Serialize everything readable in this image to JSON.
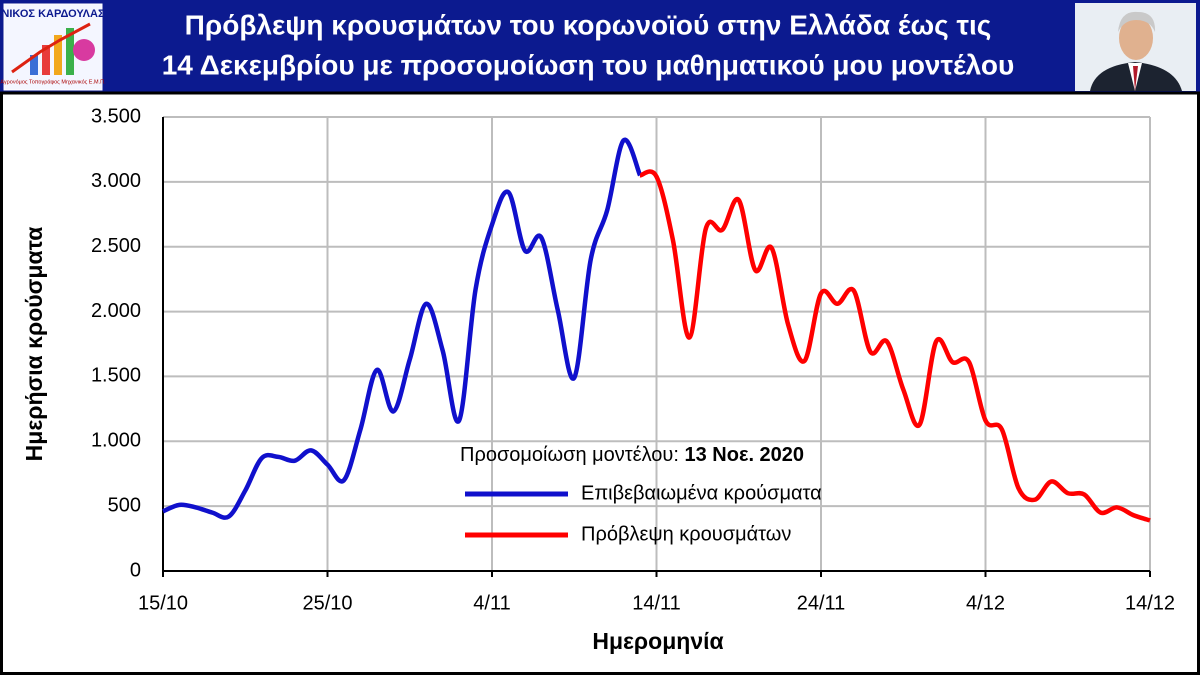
{
  "header": {
    "title_lines": [
      "Πρόβλεψη κρουσμάτων του κορωνοϊού στην Ελλάδα έως τις",
      "14 Δεκεμβρίου με προσομοίωση του μαθηματικού μου μοντέλου"
    ],
    "logo_name": "ΝΙΚΟΣ ΚΑΡΔΟΥΛΑΣ",
    "logo_caption": "Αγρονόμος Τοπογράφος Μηχανικός Ε.Μ.Π."
  },
  "chart_data": {
    "type": "line",
    "annotation": {
      "text": "Προσομοίωση μοντέλου:",
      "date": "13 Νοε. 2020"
    },
    "x_label": "Ημερομηνία",
    "y_label": "Ημερήσια κρούσματα",
    "x": [
      0,
      1,
      2,
      3,
      4,
      5,
      6,
      7,
      8,
      9,
      10,
      11,
      12,
      13,
      14,
      15,
      16,
      17,
      18,
      19,
      20,
      21,
      22,
      23,
      24,
      25,
      26,
      27,
      28,
      29,
      30,
      31,
      32,
      33,
      34,
      35,
      36,
      37,
      38,
      39,
      40,
      41,
      42,
      43,
      44,
      45,
      46,
      47,
      48,
      49,
      50,
      51,
      52,
      53,
      54,
      55,
      56,
      57,
      58,
      59,
      60
    ],
    "xlim": [
      0,
      60
    ],
    "xticks": [
      {
        "value": 0,
        "label": "15/10"
      },
      {
        "value": 10,
        "label": "25/10"
      },
      {
        "value": 20,
        "label": "4/11"
      },
      {
        "value": 30,
        "label": "14/11"
      },
      {
        "value": 40,
        "label": "24/11"
      },
      {
        "value": 50,
        "label": "4/12"
      },
      {
        "value": 60,
        "label": "14/12"
      }
    ],
    "ylim": [
      0,
      3500
    ],
    "yticks": [
      0,
      500,
      {
        "value": 1000,
        "label": "1.000"
      },
      {
        "value": 1500,
        "label": "1.500"
      },
      {
        "value": 2000,
        "label": "2.000"
      },
      {
        "value": 2500,
        "label": "2.500"
      },
      {
        "value": 3000,
        "label": "3.000"
      },
      {
        "value": 3500,
        "label": "3.500"
      }
    ],
    "grid": true,
    "series": [
      {
        "name": "Επιβεβαιωμένα κρούσματα",
        "color": "#1010cc",
        "values": [
          460,
          510,
          490,
          450,
          420,
          620,
          870,
          880,
          850,
          930,
          820,
          700,
          1090,
          1550,
          1230,
          1630,
          2060,
          1700,
          1160,
          2170,
          2670,
          2920,
          2470,
          2570,
          2010,
          1490,
          2400,
          2780,
          3320,
          3050,
          null,
          null,
          null,
          null,
          null,
          null,
          null,
          null,
          null,
          null,
          null,
          null,
          null,
          null,
          null,
          null,
          null,
          null,
          null,
          null,
          null,
          null,
          null,
          null,
          null,
          null,
          null,
          null,
          null,
          null,
          null
        ]
      },
      {
        "name": "Πρόβλεψη κρουσμάτων",
        "color": "#ff0000",
        "values": [
          null,
          null,
          null,
          null,
          null,
          null,
          null,
          null,
          null,
          null,
          null,
          null,
          null,
          null,
          null,
          null,
          null,
          null,
          null,
          null,
          null,
          null,
          null,
          null,
          null,
          null,
          null,
          null,
          null,
          3050,
          3040,
          2550,
          1800,
          2640,
          2630,
          2860,
          2320,
          2490,
          1900,
          1620,
          2140,
          2060,
          2160,
          1690,
          1770,
          1400,
          1130,
          1770,
          1610,
          1610,
          1160,
          1090,
          640,
          550,
          690,
          600,
          590,
          450,
          490,
          430,
          390
        ]
      }
    ]
  }
}
